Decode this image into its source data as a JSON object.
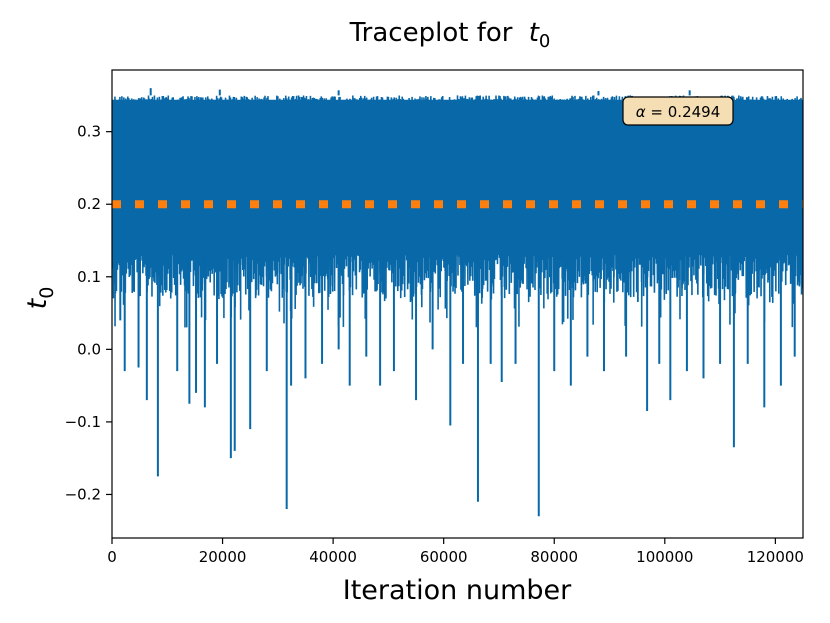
{
  "chart_data": {
    "type": "line",
    "title_text": "Traceplot for",
    "title_var": "t",
    "title_sub": "0",
    "xlabel": "Iteration number",
    "ylabel_var": "t",
    "ylabel_sub": "0",
    "xlim": [
      0,
      125000
    ],
    "ylim": [
      -0.26,
      0.385
    ],
    "x_ticks": [
      0,
      20000,
      40000,
      60000,
      80000,
      100000,
      120000
    ],
    "x_tick_labels": [
      "0",
      "20000",
      "40000",
      "60000",
      "80000",
      "100000",
      "120000"
    ],
    "y_ticks": [
      -0.2,
      -0.1,
      0.0,
      0.1,
      0.2,
      0.3
    ],
    "y_tick_labels": [
      "−0.2",
      "−0.1",
      "0.0",
      "0.1",
      "0.2",
      "0.3"
    ],
    "grid": false,
    "series": [
      {
        "name": "trace",
        "color": "#0868a8",
        "typical_upper": 0.35,
        "typical_lower": 0.13,
        "mean": 0.25,
        "num_iterations": 125000,
        "low_spikes": [
          [
            1500,
            0.04
          ],
          [
            2300,
            -0.03
          ],
          [
            4800,
            -0.025
          ],
          [
            6300,
            -0.07
          ],
          [
            8300,
            -0.175
          ],
          [
            11800,
            -0.03
          ],
          [
            14000,
            -0.075
          ],
          [
            15200,
            -0.06
          ],
          [
            16800,
            -0.08
          ],
          [
            19000,
            -0.02
          ],
          [
            21500,
            -0.15
          ],
          [
            22200,
            -0.14
          ],
          [
            25000,
            -0.11
          ],
          [
            28000,
            -0.03
          ],
          [
            31600,
            -0.22
          ],
          [
            32400,
            -0.05
          ],
          [
            35000,
            -0.04
          ],
          [
            38000,
            -0.02
          ],
          [
            41000,
            0.0
          ],
          [
            43000,
            -0.05
          ],
          [
            46000,
            -0.01
          ],
          [
            48500,
            -0.05
          ],
          [
            51000,
            -0.03
          ],
          [
            55000,
            -0.07
          ],
          [
            58000,
            0.0
          ],
          [
            61200,
            -0.105
          ],
          [
            63500,
            -0.02
          ],
          [
            66200,
            -0.21
          ],
          [
            68500,
            -0.02
          ],
          [
            70500,
            -0.045
          ],
          [
            73000,
            -0.02
          ],
          [
            77200,
            -0.23
          ],
          [
            80000,
            -0.03
          ],
          [
            83000,
            -0.05
          ],
          [
            86000,
            -0.01
          ],
          [
            89000,
            -0.03
          ],
          [
            93000,
            -0.01
          ],
          [
            96800,
            -0.085
          ],
          [
            99000,
            -0.02
          ],
          [
            101000,
            -0.07
          ],
          [
            104000,
            -0.03
          ],
          [
            107000,
            -0.04
          ],
          [
            110000,
            -0.02
          ],
          [
            112500,
            -0.135
          ],
          [
            115000,
            -0.02
          ],
          [
            118000,
            -0.08
          ],
          [
            121000,
            -0.05
          ],
          [
            123500,
            -0.01
          ]
        ],
        "high_spikes": [
          [
            7000,
            0.36
          ],
          [
            19500,
            0.358
          ],
          [
            41000,
            0.357
          ],
          [
            88000,
            0.356
          ],
          [
            104500,
            0.357
          ]
        ]
      }
    ],
    "reference_line": {
      "value": 0.2,
      "color": "#ff7f0e",
      "style": "dotted"
    },
    "annotation": {
      "prefix": "α",
      "text": "= 0.2494",
      "location": "top-right",
      "facecolor": "#f5deb3"
    }
  }
}
